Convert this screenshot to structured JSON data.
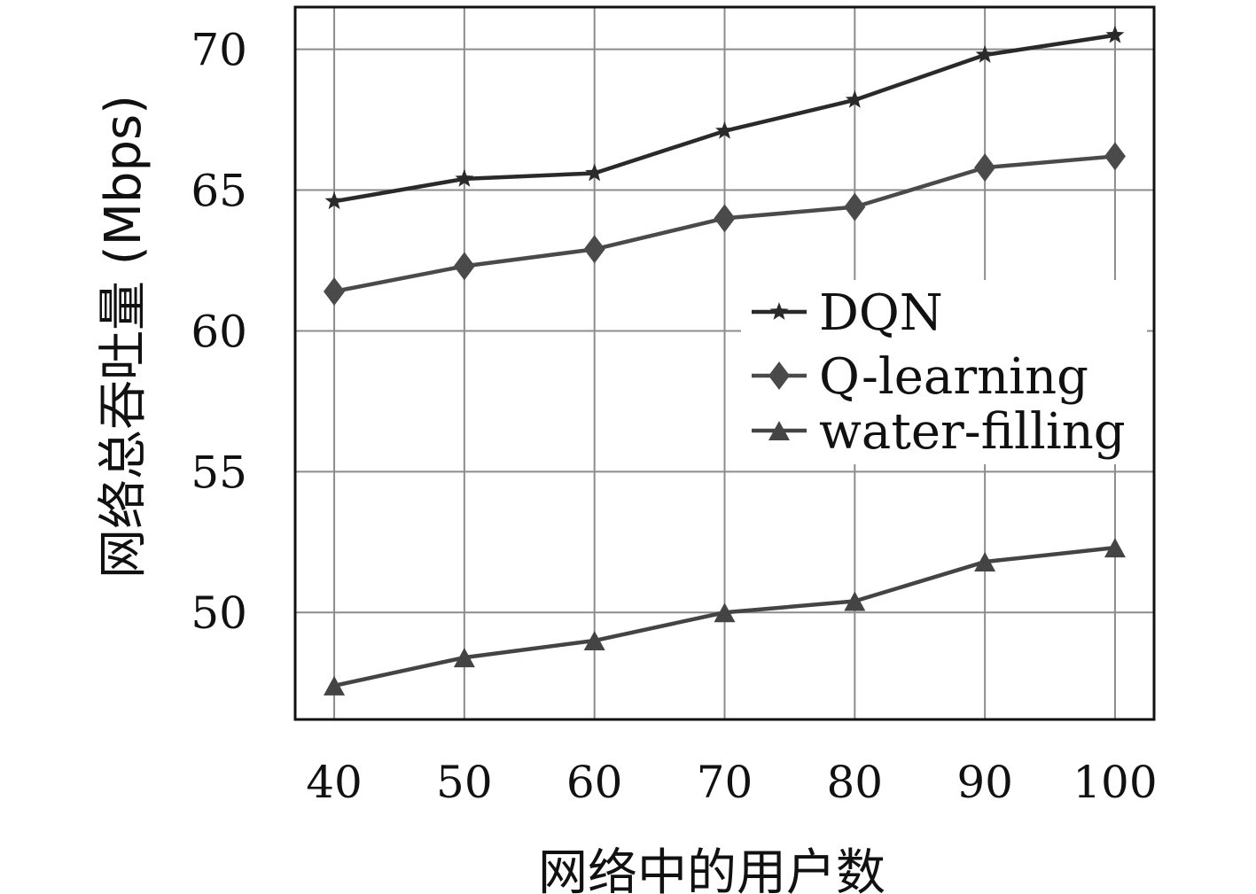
{
  "chart_data": {
    "type": "line",
    "title": "",
    "xlabel": "网络中的用户数",
    "ylabel": "网络总吞吐量 (Mbps)",
    "x": [
      40,
      50,
      60,
      70,
      80,
      90,
      100
    ],
    "x_tick_labels": [
      "40",
      "50",
      "60",
      "70",
      "80",
      "90",
      "100"
    ],
    "y_ticks": [
      50,
      55,
      60,
      65,
      70
    ],
    "y_tick_labels": [
      "50",
      "55",
      "60",
      "65",
      "70"
    ],
    "xlim": [
      37,
      103
    ],
    "ylim": [
      46.2,
      71.5
    ],
    "grid": true,
    "legend_position": "right",
    "series": [
      {
        "name": "DQN",
        "marker": "star",
        "color": "#2a2a2a",
        "values": [
          64.6,
          65.4,
          65.6,
          67.1,
          68.2,
          69.8,
          70.5
        ]
      },
      {
        "name": "Q-learning",
        "marker": "diamond",
        "color": "#4a4a4a",
        "values": [
          61.4,
          62.3,
          62.9,
          64.0,
          64.4,
          65.8,
          66.2
        ]
      },
      {
        "name": "water-filling",
        "marker": "triangle",
        "color": "#444444",
        "values": [
          47.4,
          48.4,
          49.0,
          50.0,
          50.4,
          51.8,
          52.3
        ]
      }
    ]
  }
}
